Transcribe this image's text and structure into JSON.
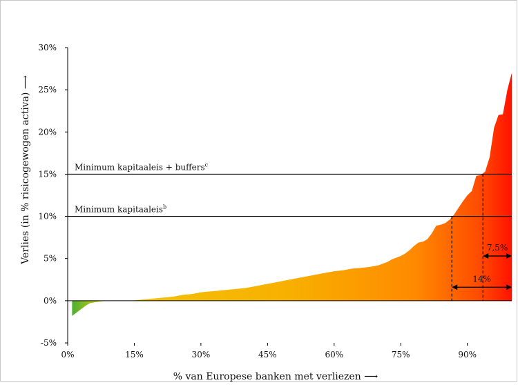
{
  "chart_data": {
    "type": "area",
    "title": "",
    "xlabel": "% van Europese banken met verliezen",
    "ylabel": "Verlies (in % risicogewogen activa)",
    "arrow_glyph": "⟶",
    "xlim": [
      0,
      100
    ],
    "ylim": [
      -5,
      30
    ],
    "x_ticks": [
      {
        "value": 0,
        "label": "0%"
      },
      {
        "value": 15,
        "label": "15%"
      },
      {
        "value": 30,
        "label": "30%"
      },
      {
        "value": 45,
        "label": "45%"
      },
      {
        "value": 60,
        "label": "60%"
      },
      {
        "value": 75,
        "label": "75%"
      },
      {
        "value": 90,
        "label": "90%"
      }
    ],
    "y_ticks": [
      {
        "value": -5,
        "label": "-5%"
      },
      {
        "value": 0,
        "label": "0%"
      },
      {
        "value": 5,
        "label": "5%"
      },
      {
        "value": 10,
        "label": "10%"
      },
      {
        "value": 15,
        "label": "15%"
      },
      {
        "value": 20,
        "label": "20%"
      },
      {
        "value": 25,
        "label": "25%"
      },
      {
        "value": 30,
        "label": "30%"
      }
    ],
    "grid": false,
    "x": [
      1,
      2,
      3,
      4,
      5,
      6,
      7,
      8,
      9,
      10,
      12,
      14,
      16,
      18,
      20,
      22,
      24,
      26,
      28,
      30,
      32,
      34,
      36,
      38,
      40,
      42,
      44,
      46,
      48,
      50,
      52,
      54,
      56,
      58,
      60,
      62,
      64,
      66,
      68,
      70,
      72,
      73,
      74,
      75,
      76,
      77,
      78,
      79,
      80,
      81,
      82,
      83,
      84,
      85,
      86,
      87,
      88,
      89,
      90,
      91,
      92,
      93,
      94,
      95,
      96,
      97,
      98,
      99,
      100
    ],
    "y": [
      -1.8,
      -1.4,
      -1.0,
      -0.6,
      -0.3,
      -0.2,
      -0.1,
      -0.05,
      0,
      0,
      0,
      0,
      0.1,
      0.2,
      0.3,
      0.4,
      0.5,
      0.7,
      0.8,
      1.0,
      1.1,
      1.2,
      1.3,
      1.4,
      1.5,
      1.7,
      1.9,
      2.1,
      2.3,
      2.5,
      2.7,
      2.9,
      3.1,
      3.3,
      3.5,
      3.6,
      3.8,
      3.9,
      4.0,
      4.2,
      4.6,
      4.9,
      5.1,
      5.3,
      5.6,
      6.0,
      6.5,
      6.9,
      7.0,
      7.3,
      8.0,
      8.9,
      9.0,
      9.2,
      9.6,
      10.2,
      11.0,
      11.8,
      12.5,
      13.0,
      14.8,
      14.9,
      15.3,
      17.0,
      20.5,
      22.0,
      22.1,
      25.0,
      27.0
    ],
    "reference_lines": [
      {
        "y": 15,
        "label": "Minimum kapitaaleis + buffers",
        "superscript": "c"
      },
      {
        "y": 10,
        "label": "Minimum kapitaaleis",
        "superscript": "b"
      }
    ],
    "annotations": [
      {
        "label": "14%",
        "x_start": 86.5,
        "x_end": 100,
        "y": 1.6,
        "dashed_x": 86.5,
        "dashed_to": 10
      },
      {
        "label": "7,5%",
        "x_start": 93.5,
        "x_end": 100,
        "y": 5.3,
        "dashed_x": 93.5,
        "dashed_to": 15
      }
    ],
    "colors": {
      "negative": "#3aa935",
      "low": "#f2c20a",
      "mid": "#ff8a00",
      "high": "#ff1200",
      "line": "#000000"
    }
  }
}
